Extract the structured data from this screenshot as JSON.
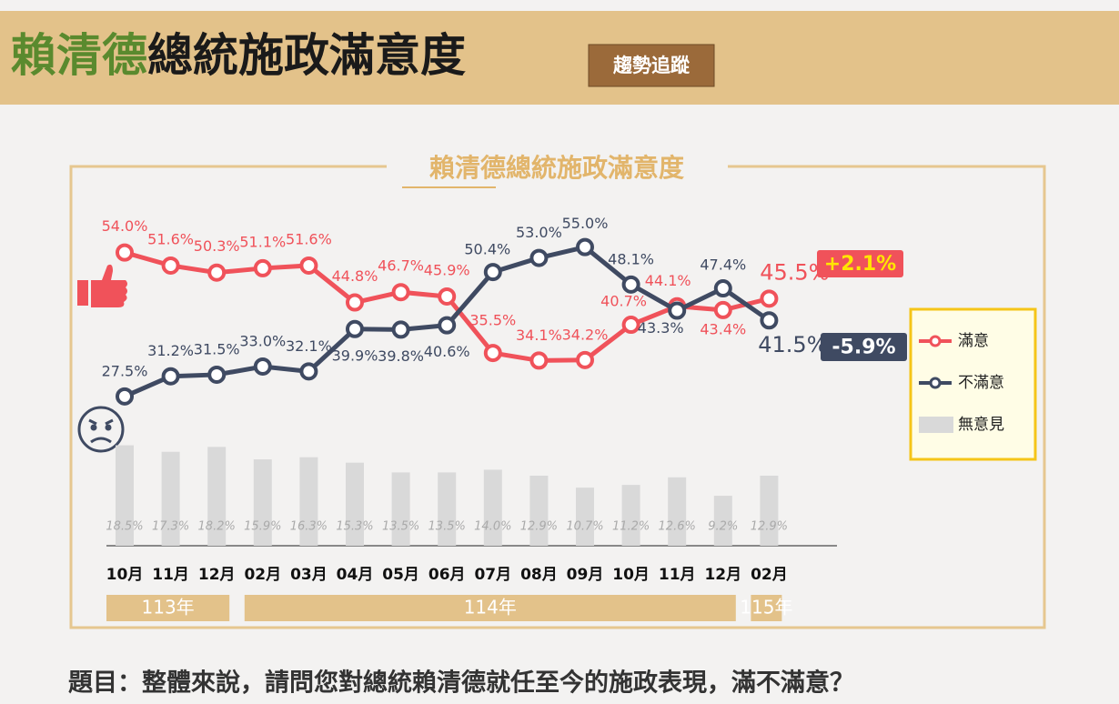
{
  "header": {
    "title_highlight": "賴清德",
    "title_rest": "總統施政滿意度",
    "badge": "趨勢追蹤"
  },
  "chart_data": {
    "type": "line",
    "title": "賴清德總統施政滿意度",
    "categories": [
      "10月",
      "11月",
      "12月",
      "02月",
      "03月",
      "04月",
      "05月",
      "06月",
      "07月",
      "08月",
      "09月",
      "10月",
      "11月",
      "12月",
      "02月"
    ],
    "year_groups": [
      {
        "label": "113年",
        "count": 3
      },
      {
        "label": "114年",
        "count": 11
      },
      {
        "label": "115年",
        "count": 1
      }
    ],
    "series": [
      {
        "name": "滿意",
        "color": "#f0525a",
        "values": [
          54.0,
          51.6,
          50.3,
          51.1,
          51.6,
          44.8,
          46.7,
          45.9,
          35.5,
          34.1,
          34.2,
          40.7,
          44.1,
          43.4,
          45.5
        ],
        "value_labels": [
          "54.0%",
          "51.6%",
          "50.3%",
          "51.1%",
          "51.6%",
          "44.8%",
          "46.7%",
          "45.9%",
          "35.5%",
          "34.1%",
          "34.2%",
          "40.7%",
          "44.1%",
          "43.4%",
          "45.5%"
        ]
      },
      {
        "name": "不滿意",
        "color": "#3f4a62",
        "values": [
          27.5,
          31.2,
          31.5,
          33.0,
          32.1,
          39.9,
          39.8,
          40.6,
          50.4,
          53.0,
          55.0,
          48.1,
          43.3,
          47.4,
          41.5
        ],
        "value_labels": [
          "27.5%",
          "31.2%",
          "31.5%",
          "33.0%",
          "32.1%",
          "39.9%",
          "39.8%",
          "40.6%",
          "50.4%",
          "53.0%",
          "55.0%",
          "48.1%",
          "43.3%",
          "47.4%",
          "41.5%"
        ]
      },
      {
        "name": "無意見",
        "type": "bar",
        "color": "#d9d9d9",
        "values": [
          18.5,
          17.3,
          18.2,
          15.9,
          16.3,
          15.3,
          13.5,
          13.5,
          14.0,
          12.9,
          10.7,
          11.2,
          12.6,
          9.2,
          12.9
        ],
        "value_labels": [
          "18.5%",
          "17.3%",
          "18.2%",
          "15.9%",
          "16.3%",
          "15.3%",
          "13.5%",
          "13.5%",
          "14.0%",
          "12.9%",
          "10.7%",
          "11.2%",
          "12.6%",
          "9.2%",
          "12.9%"
        ]
      }
    ],
    "annotations": [
      {
        "text": "+2.1%",
        "color": "#f0525a",
        "text_color": "#ffe600"
      },
      {
        "text": "-5.9%",
        "color": "#3f4a62",
        "text_color": "#ffffff"
      }
    ]
  },
  "footer": {
    "question": "題目：整體來說，請問您對總統賴清德就任至今的施政表現，滿不滿意？"
  }
}
